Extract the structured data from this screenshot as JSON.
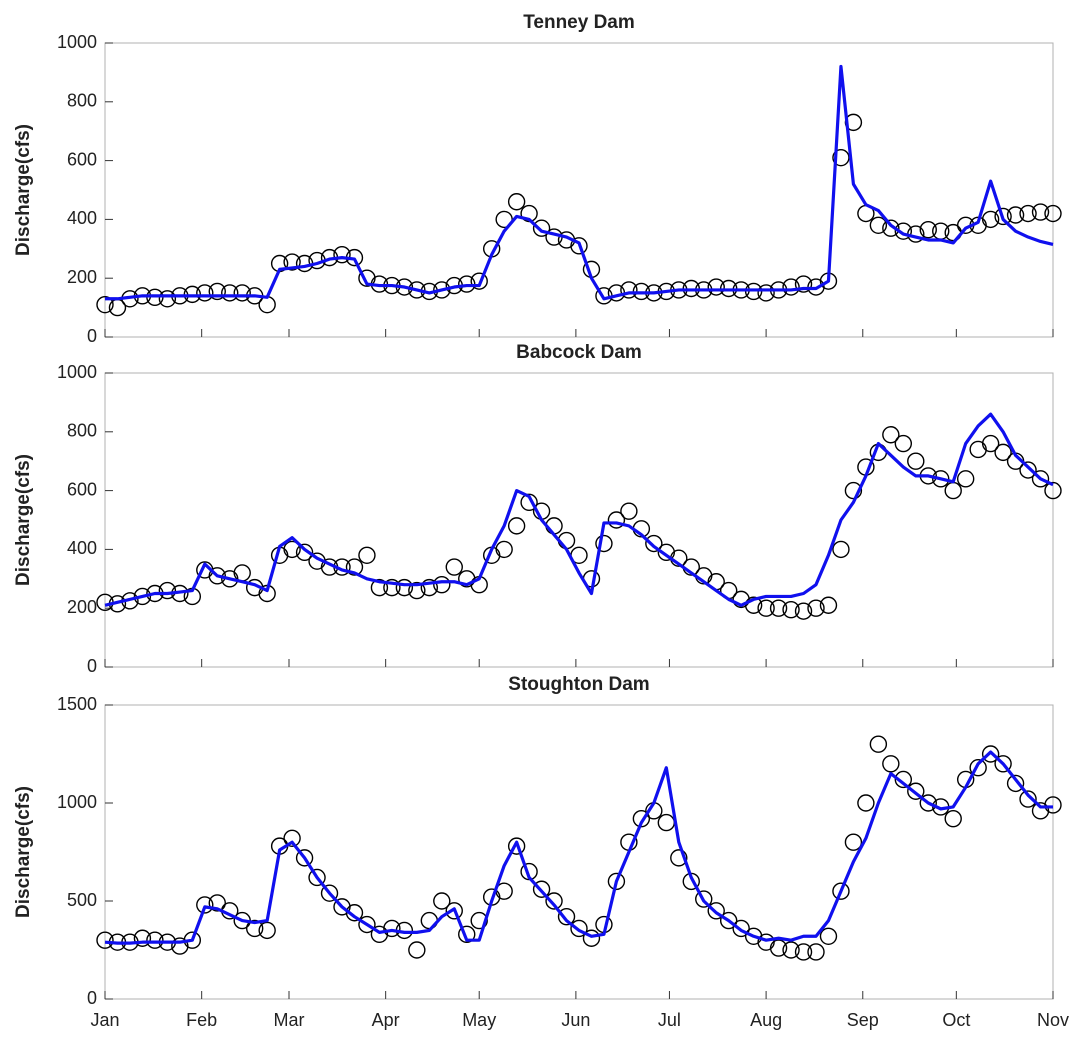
{
  "chart_data": [
    {
      "type": "line",
      "title": "Tenney Dam",
      "y_label": "Discharge(cfs)",
      "x": [
        0,
        4,
        8,
        12,
        16,
        20,
        24,
        28,
        32,
        36,
        40,
        44,
        48,
        52,
        56,
        60,
        64,
        68,
        72,
        76,
        80,
        84,
        88,
        92,
        96,
        100,
        104,
        108,
        112,
        116,
        120,
        124,
        128,
        132,
        136,
        140,
        144,
        148,
        152,
        156,
        160,
        164,
        168,
        172,
        176,
        180,
        184,
        188,
        192,
        196,
        200,
        204,
        208,
        212,
        216,
        220,
        224,
        228,
        232,
        236,
        240,
        244,
        248,
        252,
        256,
        260,
        264,
        268,
        272,
        276,
        280,
        284,
        288,
        292,
        296,
        300,
        304
      ],
      "xlim": [
        0,
        304
      ],
      "ylim": [
        0,
        1000
      ],
      "yticks": [
        0,
        200,
        400,
        600,
        800,
        1000
      ],
      "series": [
        {
          "type": "scatter",
          "color": "#000000",
          "values": [
            110,
            100,
            130,
            140,
            135,
            130,
            140,
            145,
            150,
            155,
            150,
            150,
            140,
            110,
            250,
            255,
            250,
            260,
            270,
            280,
            270,
            200,
            180,
            175,
            170,
            160,
            155,
            160,
            175,
            180,
            190,
            300,
            400,
            460,
            420,
            370,
            340,
            330,
            310,
            230,
            140,
            150,
            160,
            155,
            150,
            155,
            160,
            165,
            160,
            170,
            165,
            160,
            155,
            150,
            160,
            170,
            180,
            170,
            190,
            610,
            730,
            420,
            380,
            370,
            360,
            350,
            365,
            360,
            355,
            380,
            380,
            400,
            410,
            415,
            420,
            425,
            420
          ]
        },
        {
          "type": "line",
          "color": "#1010ee",
          "values": [
            130,
            130,
            135,
            140,
            140,
            140,
            140,
            140,
            140,
            140,
            140,
            140,
            140,
            135,
            230,
            235,
            240,
            250,
            265,
            270,
            265,
            180,
            175,
            175,
            170,
            160,
            150,
            160,
            170,
            175,
            175,
            280,
            360,
            410,
            400,
            360,
            350,
            340,
            320,
            200,
            130,
            140,
            150,
            150,
            150,
            155,
            160,
            160,
            160,
            160,
            160,
            160,
            160,
            160,
            160,
            160,
            165,
            165,
            190,
            920,
            520,
            450,
            430,
            380,
            350,
            340,
            330,
            330,
            320,
            370,
            390,
            530,
            400,
            360,
            340,
            325,
            315
          ]
        }
      ]
    },
    {
      "type": "line",
      "title": "Babcock Dam",
      "y_label": "Discharge(cfs)",
      "x": [
        0,
        4,
        8,
        12,
        16,
        20,
        24,
        28,
        32,
        36,
        40,
        44,
        48,
        52,
        56,
        60,
        64,
        68,
        72,
        76,
        80,
        84,
        88,
        92,
        96,
        100,
        104,
        108,
        112,
        116,
        120,
        124,
        128,
        132,
        136,
        140,
        144,
        148,
        152,
        156,
        160,
        164,
        168,
        172,
        176,
        180,
        184,
        188,
        192,
        196,
        200,
        204,
        208,
        212,
        216,
        220,
        224,
        228,
        232,
        236,
        240,
        244,
        248,
        252,
        256,
        260,
        264,
        268,
        272,
        276,
        280,
        284,
        288,
        292,
        296,
        300,
        304
      ],
      "xlim": [
        0,
        304
      ],
      "ylim": [
        0,
        1000
      ],
      "yticks": [
        0,
        200,
        400,
        600,
        800,
        1000
      ],
      "series": [
        {
          "type": "scatter",
          "color": "#000000",
          "values": [
            220,
            215,
            225,
            240,
            250,
            260,
            250,
            240,
            330,
            310,
            300,
            320,
            270,
            250,
            380,
            400,
            390,
            360,
            340,
            340,
            340,
            380,
            270,
            270,
            270,
            260,
            270,
            280,
            340,
            300,
            280,
            380,
            400,
            480,
            560,
            530,
            480,
            430,
            380,
            300,
            420,
            500,
            530,
            470,
            420,
            390,
            370,
            340,
            310,
            290,
            260,
            230,
            210,
            200,
            200,
            195,
            190,
            200,
            210,
            400,
            600,
            680,
            730,
            790,
            760,
            700,
            650,
            640,
            600,
            640,
            740,
            760,
            730,
            700,
            670,
            640,
            600
          ]
        },
        {
          "type": "line",
          "color": "#1010ee",
          "values": [
            210,
            220,
            230,
            240,
            250,
            250,
            255,
            260,
            350,
            310,
            300,
            290,
            280,
            260,
            410,
            440,
            400,
            370,
            350,
            330,
            320,
            300,
            290,
            285,
            280,
            280,
            285,
            290,
            290,
            280,
            300,
            400,
            480,
            600,
            580,
            500,
            450,
            400,
            320,
            250,
            490,
            490,
            480,
            450,
            410,
            380,
            350,
            320,
            290,
            260,
            230,
            210,
            230,
            240,
            240,
            240,
            250,
            280,
            380,
            500,
            560,
            650,
            760,
            720,
            680,
            650,
            650,
            640,
            630,
            760,
            820,
            860,
            800,
            720,
            680,
            640,
            620
          ]
        }
      ]
    },
    {
      "type": "line",
      "title": "Stoughton Dam",
      "y_label": "Discharge(cfs)",
      "x": [
        0,
        4,
        8,
        12,
        16,
        20,
        24,
        28,
        32,
        36,
        40,
        44,
        48,
        52,
        56,
        60,
        64,
        68,
        72,
        76,
        80,
        84,
        88,
        92,
        96,
        100,
        104,
        108,
        112,
        116,
        120,
        124,
        128,
        132,
        136,
        140,
        144,
        148,
        152,
        156,
        160,
        164,
        168,
        172,
        176,
        180,
        184,
        188,
        192,
        196,
        200,
        204,
        208,
        212,
        216,
        220,
        224,
        228,
        232,
        236,
        240,
        244,
        248,
        252,
        256,
        260,
        264,
        268,
        272,
        276,
        280,
        284,
        288,
        292,
        296,
        300,
        304
      ],
      "xlim": [
        0,
        304
      ],
      "ylim": [
        0,
        1500
      ],
      "yticks": [
        0,
        500,
        1000,
        1500
      ],
      "xticks": [
        {
          "value": 0,
          "label": "Jan"
        },
        {
          "value": 31,
          "label": "Feb"
        },
        {
          "value": 59,
          "label": "Mar"
        },
        {
          "value": 90,
          "label": "Apr"
        },
        {
          "value": 120,
          "label": "May"
        },
        {
          "value": 151,
          "label": "Jun"
        },
        {
          "value": 181,
          "label": "Jul"
        },
        {
          "value": 212,
          "label": "Aug"
        },
        {
          "value": 243,
          "label": "Sep"
        },
        {
          "value": 273,
          "label": "Oct"
        },
        {
          "value": 304,
          "label": "Nov"
        }
      ],
      "series": [
        {
          "type": "scatter",
          "color": "#000000",
          "values": [
            300,
            290,
            290,
            310,
            300,
            290,
            270,
            300,
            480,
            490,
            450,
            400,
            360,
            350,
            780,
            820,
            720,
            620,
            540,
            470,
            440,
            380,
            330,
            360,
            350,
            250,
            400,
            500,
            450,
            330,
            400,
            520,
            550,
            780,
            650,
            560,
            500,
            420,
            360,
            310,
            380,
            600,
            800,
            920,
            960,
            900,
            720,
            600,
            510,
            450,
            400,
            360,
            320,
            290,
            260,
            250,
            240,
            240,
            320,
            550,
            800,
            1000,
            1300,
            1200,
            1120,
            1060,
            1000,
            980,
            920,
            1120,
            1180,
            1250,
            1200,
            1100,
            1020,
            960,
            990
          ]
        },
        {
          "type": "line",
          "color": "#1010ee",
          "values": [
            290,
            285,
            285,
            290,
            290,
            290,
            290,
            300,
            470,
            460,
            430,
            400,
            390,
            400,
            760,
            800,
            720,
            620,
            540,
            470,
            420,
            380,
            340,
            350,
            340,
            340,
            350,
            420,
            460,
            300,
            300,
            500,
            680,
            800,
            620,
            550,
            480,
            400,
            350,
            320,
            330,
            600,
            750,
            900,
            1000,
            1180,
            800,
            620,
            500,
            440,
            400,
            350,
            320,
            300,
            310,
            300,
            320,
            320,
            400,
            550,
            700,
            820,
            1000,
            1150,
            1100,
            1050,
            1000,
            970,
            980,
            1080,
            1200,
            1260,
            1200,
            1120,
            1040,
            980,
            980
          ]
        }
      ]
    }
  ]
}
